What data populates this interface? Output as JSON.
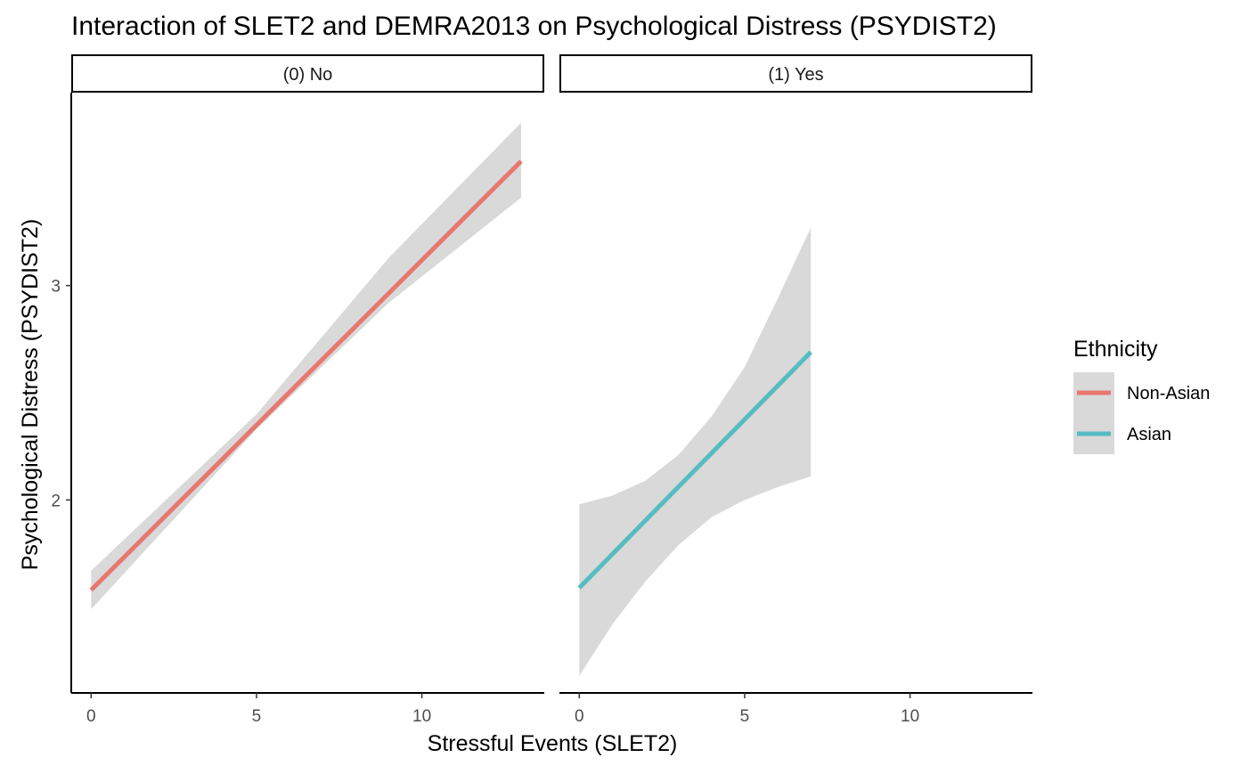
{
  "chart_data": {
    "type": "line",
    "title": "Interaction of SLET2 and DEMRA2013 on Psychological Distress (PSYDIST2)",
    "xlabel": "Stressful Events (SLET2)",
    "ylabel": "Psychological Distress (PSYDIST2)",
    "xlim": [
      -0.6,
      13.7
    ],
    "ylim": [
      1.1,
      3.9
    ],
    "x_ticks": [
      0,
      5,
      10
    ],
    "y_ticks": [
      2,
      3
    ],
    "grid": false,
    "legend": {
      "title": "Ethnicity",
      "position": "right",
      "entries": [
        {
          "label": "Non-Asian",
          "color": "#E8776F"
        },
        {
          "label": "Asian",
          "color": "#56BCC2"
        }
      ]
    },
    "band_color": "#D9D9D9",
    "panels": [
      {
        "strip": "(0) No",
        "series": [
          {
            "name": "Non-Asian",
            "color": "#E8776F",
            "line": [
              {
                "x": 0,
                "y": 1.58
              },
              {
                "x": 13,
                "y": 3.58
              }
            ],
            "band": [
              {
                "x": 0,
                "lo": 1.49,
                "hi": 1.67
              },
              {
                "x": 5,
                "lo": 2.33,
                "hi": 2.4
              },
              {
                "x": 9,
                "lo": 2.92,
                "hi": 3.13
              },
              {
                "x": 13,
                "lo": 3.41,
                "hi": 3.76
              }
            ]
          }
        ]
      },
      {
        "strip": "(1) Yes",
        "series": [
          {
            "name": "Asian",
            "color": "#56BCC2",
            "line": [
              {
                "x": 0,
                "y": 1.59
              },
              {
                "x": 7,
                "y": 2.69
              }
            ],
            "band": [
              {
                "x": 0,
                "lo": 1.18,
                "hi": 1.98
              },
              {
                "x": 1,
                "lo": 1.42,
                "hi": 2.02
              },
              {
                "x": 2,
                "lo": 1.62,
                "hi": 2.09
              },
              {
                "x": 3,
                "lo": 1.79,
                "hi": 2.21
              },
              {
                "x": 4,
                "lo": 1.92,
                "hi": 2.39
              },
              {
                "x": 5,
                "lo": 2.0,
                "hi": 2.62
              },
              {
                "x": 6,
                "lo": 2.06,
                "hi": 2.94
              },
              {
                "x": 7,
                "lo": 2.11,
                "hi": 3.27
              }
            ]
          }
        ]
      }
    ]
  }
}
